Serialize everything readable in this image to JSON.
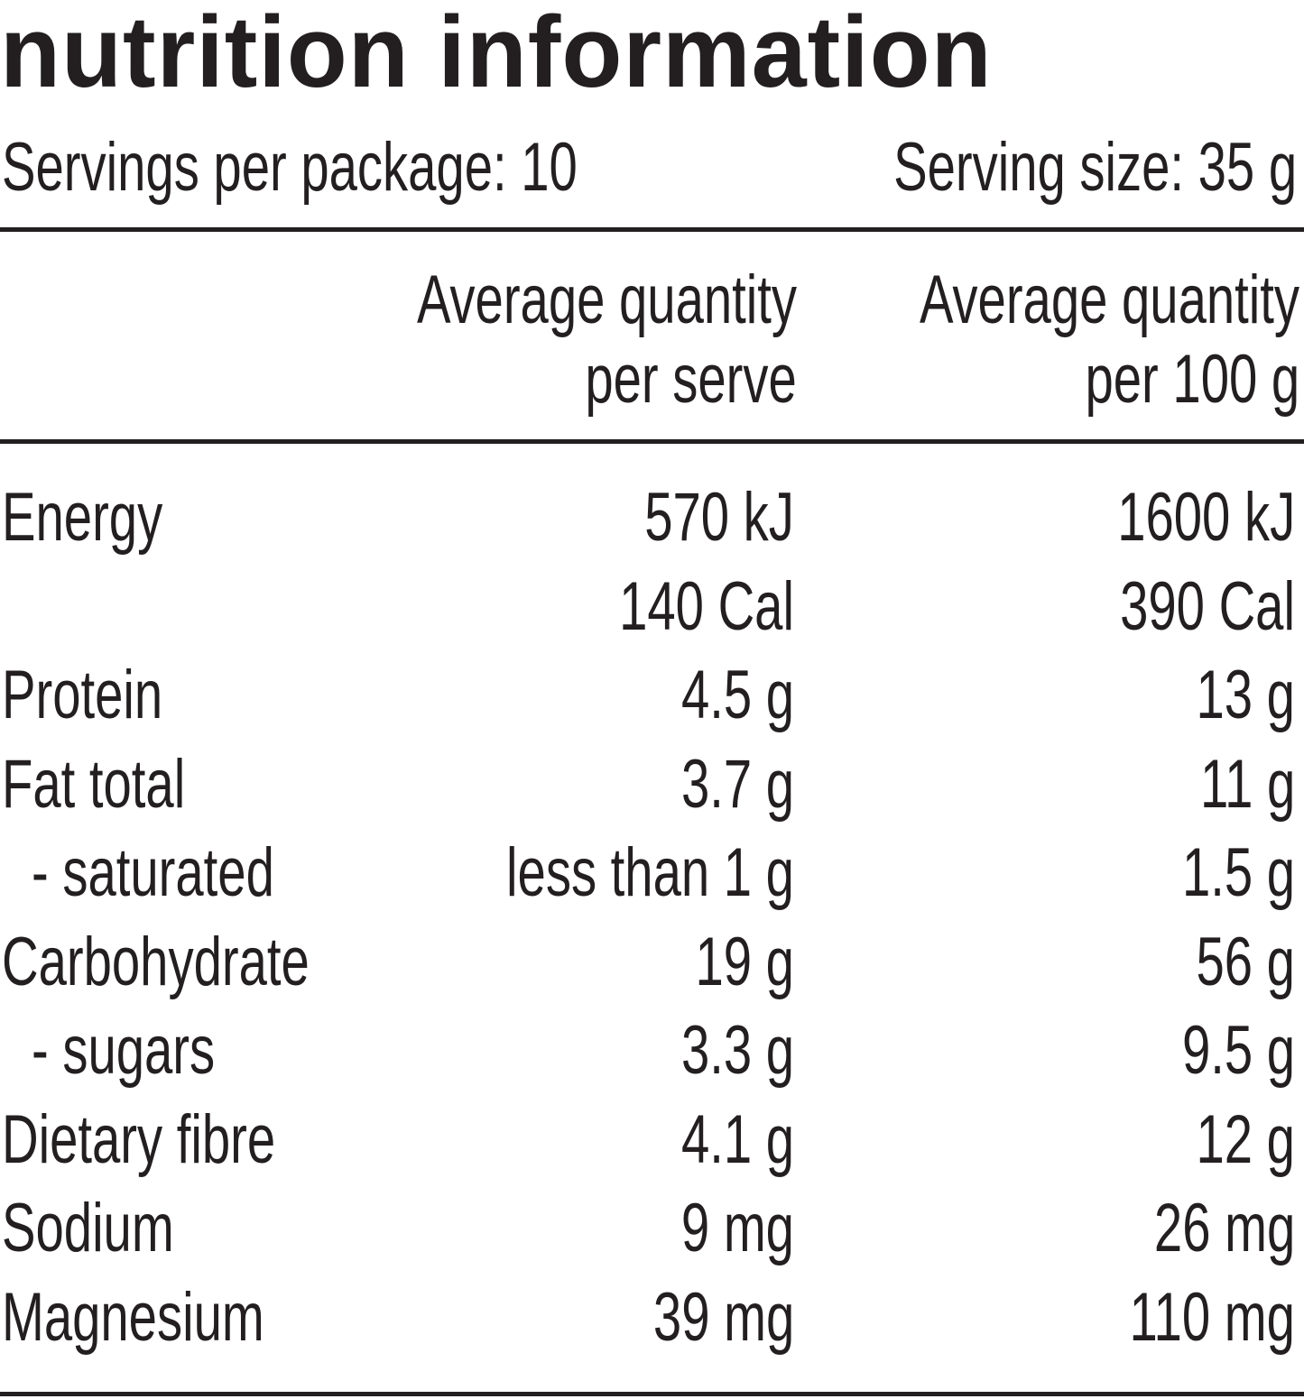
{
  "header": {
    "title": "nutrition information",
    "servings_per_package": "Servings per package: 10",
    "serving_size": "Serving size: 35 g"
  },
  "table": {
    "columns": [
      [
        "Average quantity",
        "per serve"
      ],
      [
        "Average quantity",
        "per 100 g"
      ]
    ],
    "rows": [
      {
        "label": "Energy",
        "per_serve": [
          "570 kJ",
          "140 Cal"
        ],
        "per_100g": [
          "1600 kJ",
          "390 Cal"
        ]
      },
      {
        "label": "Protein",
        "per_serve": [
          "4.5 g"
        ],
        "per_100g": [
          "13 g"
        ]
      },
      {
        "label": "Fat total",
        "per_serve": [
          "3.7 g"
        ],
        "per_100g": [
          "11 g"
        ]
      },
      {
        "label": "- saturated",
        "per_serve": [
          "less than 1 g"
        ],
        "per_100g": [
          "1.5 g"
        ]
      },
      {
        "label": "Carbohydrate",
        "per_serve": [
          "19 g"
        ],
        "per_100g": [
          "56 g"
        ]
      },
      {
        "label": "- sugars",
        "per_serve": [
          "3.3 g"
        ],
        "per_100g": [
          "9.5 g"
        ]
      },
      {
        "label": "Dietary fibre",
        "per_serve": [
          "4.1 g"
        ],
        "per_100g": [
          "12 g"
        ]
      },
      {
        "label": "Sodium",
        "per_serve": [
          "9 mg"
        ],
        "per_100g": [
          "26 mg"
        ]
      },
      {
        "label": "Magnesium",
        "per_serve": [
          "39 mg"
        ],
        "per_100g": [
          "110 mg"
        ]
      }
    ]
  }
}
